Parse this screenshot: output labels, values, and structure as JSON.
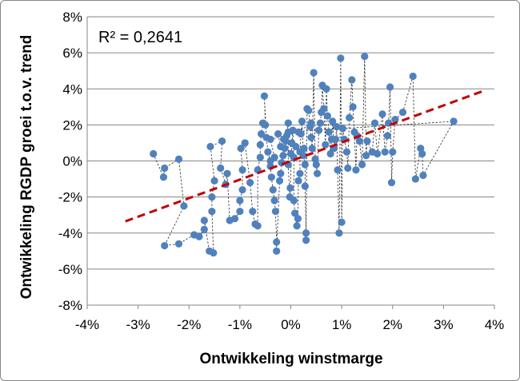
{
  "chart_data": {
    "type": "scatter",
    "title": "",
    "xlabel": "Ontwikkeling winstmarge",
    "ylabel": "Ontwikkeling RGDP groei t.o.v. trend",
    "xlim": [
      -0.04,
      0.04
    ],
    "ylim": [
      -0.08,
      0.08
    ],
    "x_ticks": [
      "-4%",
      "-3%",
      "-2%",
      "-1%",
      "0%",
      "1%",
      "2%",
      "3%",
      "4%"
    ],
    "y_ticks": [
      "8%",
      "6%",
      "4%",
      "2%",
      "0%",
      "-2%",
      "-4%",
      "-6%",
      "-8%"
    ],
    "grid": {
      "horizontal": true,
      "vertical": false
    },
    "legend": "none",
    "annotation": "R² = 0,2641",
    "colors": {
      "points": "#4F81BD",
      "trendline": "#C00000",
      "connectors": "#262626"
    },
    "trendline": {
      "x": [
        -0.0325,
        0.0375
      ],
      "y": [
        -0.0335,
        0.0385
      ]
    },
    "points": [
      [
        -0.027,
        0.004
      ],
      [
        -0.025,
        -0.009
      ],
      [
        -0.0248,
        -0.004
      ],
      [
        -0.022,
        0.001
      ],
      [
        -0.021,
        -0.025
      ],
      [
        -0.0248,
        -0.047
      ],
      [
        -0.022,
        -0.046
      ],
      [
        -0.019,
        -0.041
      ],
      [
        -0.018,
        -0.042
      ],
      [
        -0.017,
        -0.038
      ],
      [
        -0.017,
        -0.033
      ],
      [
        -0.016,
        -0.05
      ],
      [
        -0.0152,
        -0.051
      ],
      [
        -0.0155,
        -0.028
      ],
      [
        -0.0155,
        -0.02
      ],
      [
        -0.015,
        -0.011
      ],
      [
        -0.0158,
        0.008
      ],
      [
        -0.0135,
        0.011
      ],
      [
        -0.0138,
        -0.004
      ],
      [
        -0.0128,
        -0.013
      ],
      [
        -0.0125,
        -0.007
      ],
      [
        -0.012,
        -0.033
      ],
      [
        -0.011,
        -0.032
      ],
      [
        -0.01,
        -0.028
      ],
      [
        -0.01,
        -0.022
      ],
      [
        -0.0095,
        -0.016
      ],
      [
        -0.0095,
        -0.005
      ],
      [
        -0.0098,
        0.007
      ],
      [
        -0.009,
        0.01
      ],
      [
        -0.008,
        -0.012
      ],
      [
        -0.0075,
        -0.028
      ],
      [
        -0.007,
        -0.035
      ],
      [
        -0.0065,
        -0.036
      ],
      [
        -0.0065,
        -0.005
      ],
      [
        -0.006,
        0.002
      ],
      [
        -0.006,
        0.009
      ],
      [
        -0.0058,
        0.015
      ],
      [
        -0.0055,
        0.021
      ],
      [
        -0.005,
        0.02
      ],
      [
        -0.0052,
        0.036
      ],
      [
        -0.0048,
        0.013
      ],
      [
        -0.0045,
        0.005
      ],
      [
        -0.004,
        0.0
      ],
      [
        -0.004,
        -0.003
      ],
      [
        -0.0038,
        -0.009
      ],
      [
        -0.0035,
        -0.016
      ],
      [
        -0.0032,
        -0.022
      ],
      [
        -0.003,
        -0.028
      ],
      [
        -0.0028,
        -0.045
      ],
      [
        -0.0028,
        -0.05
      ],
      [
        -0.0022,
        -0.011
      ],
      [
        -0.002,
        -0.007
      ],
      [
        -0.0018,
        -0.001
      ],
      [
        -0.0015,
        0.003
      ],
      [
        -0.0012,
        0.007
      ],
      [
        -0.001,
        0.011
      ],
      [
        -0.0008,
        0.014
      ],
      [
        -0.0005,
        0.021
      ],
      [
        -0.0005,
        -0.002
      ],
      [
        -0.0002,
        -0.02
      ],
      [
        -0.0001,
        -0.015
      ],
      [
        0.0002,
        0.01
      ],
      [
        0.0004,
        0.017
      ],
      [
        0.0006,
        0.002
      ],
      [
        0.0006,
        -0.022
      ],
      [
        0.0008,
        -0.029
      ],
      [
        0.0012,
        -0.036
      ],
      [
        0.0014,
        -0.032
      ],
      [
        0.0015,
        -0.011
      ],
      [
        0.0018,
        -0.007
      ],
      [
        0.0018,
        0.005
      ],
      [
        0.002,
        0.015
      ],
      [
        0.0022,
        0.022
      ],
      [
        0.0025,
        0.003
      ],
      [
        0.0026,
        0.007
      ],
      [
        0.0028,
        -0.002
      ],
      [
        0.0028,
        -0.014
      ],
      [
        0.003,
        -0.04
      ],
      [
        0.003,
        -0.044
      ],
      [
        0.0032,
        0.029
      ],
      [
        0.0035,
        0.028
      ],
      [
        0.0038,
        0.019
      ],
      [
        0.004,
        0.013
      ],
      [
        0.0042,
        0.007
      ],
      [
        0.0045,
        0.049
      ],
      [
        0.0048,
        0.001
      ],
      [
        0.005,
        -0.002
      ],
      [
        0.0052,
        -0.007
      ],
      [
        0.0055,
        0.017
      ],
      [
        0.0058,
        0.021
      ],
      [
        0.006,
        0.027
      ],
      [
        0.0062,
        0.042
      ],
      [
        0.0065,
        0.029
      ],
      [
        0.0068,
        0.009
      ],
      [
        0.007,
        0.04
      ],
      [
        0.0072,
        0.025
      ],
      [
        0.0075,
        0.016
      ],
      [
        0.0078,
        0.004
      ],
      [
        0.008,
        0.012
      ],
      [
        0.0082,
        0.022
      ],
      [
        0.0085,
        0.007
      ],
      [
        0.0088,
        0.012
      ],
      [
        0.009,
        0.019
      ],
      [
        0.0092,
        -0.005
      ],
      [
        0.0095,
        -0.04
      ],
      [
        0.0098,
        0.057
      ],
      [
        0.01,
        -0.034
      ],
      [
        0.0102,
        0.018
      ],
      [
        0.0105,
        0.012
      ],
      [
        0.011,
        0.005
      ],
      [
        0.0112,
        -0.004
      ],
      [
        0.0115,
        0.024
      ],
      [
        0.012,
        0.045
      ],
      [
        0.0122,
        0.03
      ],
      [
        0.0125,
        0.016
      ],
      [
        0.0128,
        -0.005
      ],
      [
        0.013,
        0.014
      ],
      [
        0.0135,
        0.011
      ],
      [
        0.014,
        -0.002
      ],
      [
        0.0145,
        0.058
      ],
      [
        0.0148,
        0.003
      ],
      [
        0.015,
        0.011
      ],
      [
        0.016,
        0.005
      ],
      [
        0.0165,
        0.021
      ],
      [
        0.017,
        0.004
      ],
      [
        0.018,
        0.026
      ],
      [
        0.0185,
        0.005
      ],
      [
        0.019,
        0.014
      ],
      [
        0.0192,
        0.021
      ],
      [
        0.0195,
        0.041
      ],
      [
        0.0198,
        -0.012
      ],
      [
        0.02,
        0.005
      ],
      [
        0.0205,
        0.023
      ],
      [
        0.022,
        0.027
      ],
      [
        0.024,
        0.047
      ],
      [
        0.0245,
        -0.01
      ],
      [
        0.0255,
        0.007
      ],
      [
        0.0258,
        0.004
      ],
      [
        0.026,
        -0.008
      ],
      [
        0.032,
        0.022
      ],
      [
        -0.0005,
        0.016
      ],
      [
        -0.0014,
        0.012
      ],
      [
        0.001,
        0.008
      ],
      [
        -0.002,
        0.008
      ],
      [
        -0.0025,
        0.015
      ],
      [
        0.0,
        0.004
      ],
      [
        -0.0032,
        0.002
      ],
      [
        -0.004,
        0.012
      ],
      [
        0.0015,
        0.016
      ],
      [
        0.004,
        0.021
      ]
    ]
  }
}
